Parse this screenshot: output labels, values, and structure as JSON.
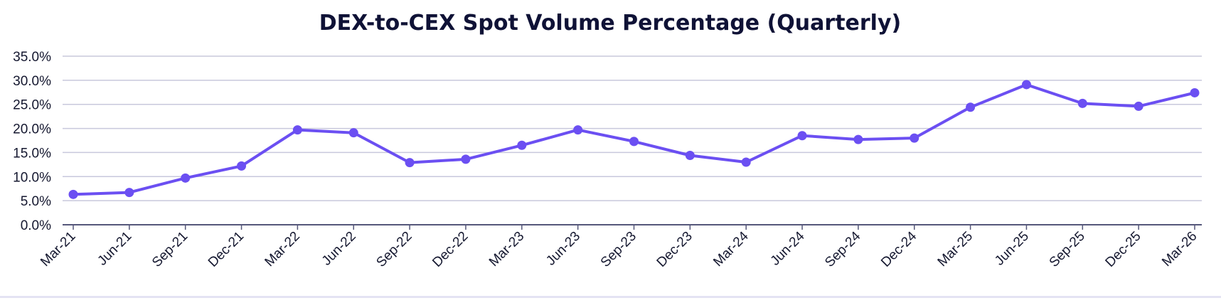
{
  "chart_data": {
    "type": "line",
    "title": "DEX-to-CEX Spot Volume Percentage (Quarterly)",
    "xlabel": "",
    "ylabel": "",
    "ylim": [
      0,
      35
    ],
    "yticks": [
      "0.0%",
      "5.0%",
      "10.0%",
      "15.0%",
      "20.0%",
      "25.0%",
      "30.0%",
      "35.0%"
    ],
    "ytick_values": [
      0,
      5,
      10,
      15,
      20,
      25,
      30,
      35
    ],
    "grid": true,
    "legend": "none",
    "categories": [
      "Mar-21",
      "Jun-21",
      "Sep-21",
      "Dec-21",
      "Mar-22",
      "Jun-22",
      "Sep-22",
      "Dec-22",
      "Mar-23",
      "Jun-23",
      "Sep-23",
      "Dec-23",
      "Mar-24",
      "Jun-24",
      "Sep-24",
      "Dec-24",
      "Mar-25",
      "Jun-25",
      "Sep-25",
      "Dec-25",
      "Mar-26"
    ],
    "series": [
      {
        "values": [
          6.3,
          6.7,
          9.7,
          12.2,
          19.7,
          19.1,
          12.9,
          13.6,
          16.5,
          19.7,
          17.3,
          14.4,
          13.0,
          18.5,
          17.7,
          18.0,
          24.4,
          29.1,
          25.2,
          24.6,
          27.4
        ]
      }
    ]
  },
  "colors": {
    "series_line": "#6b4ff2",
    "grid": "#c8c8dc",
    "axis": "#55577a",
    "title": "#0f1236",
    "labels": "#14172f"
  }
}
